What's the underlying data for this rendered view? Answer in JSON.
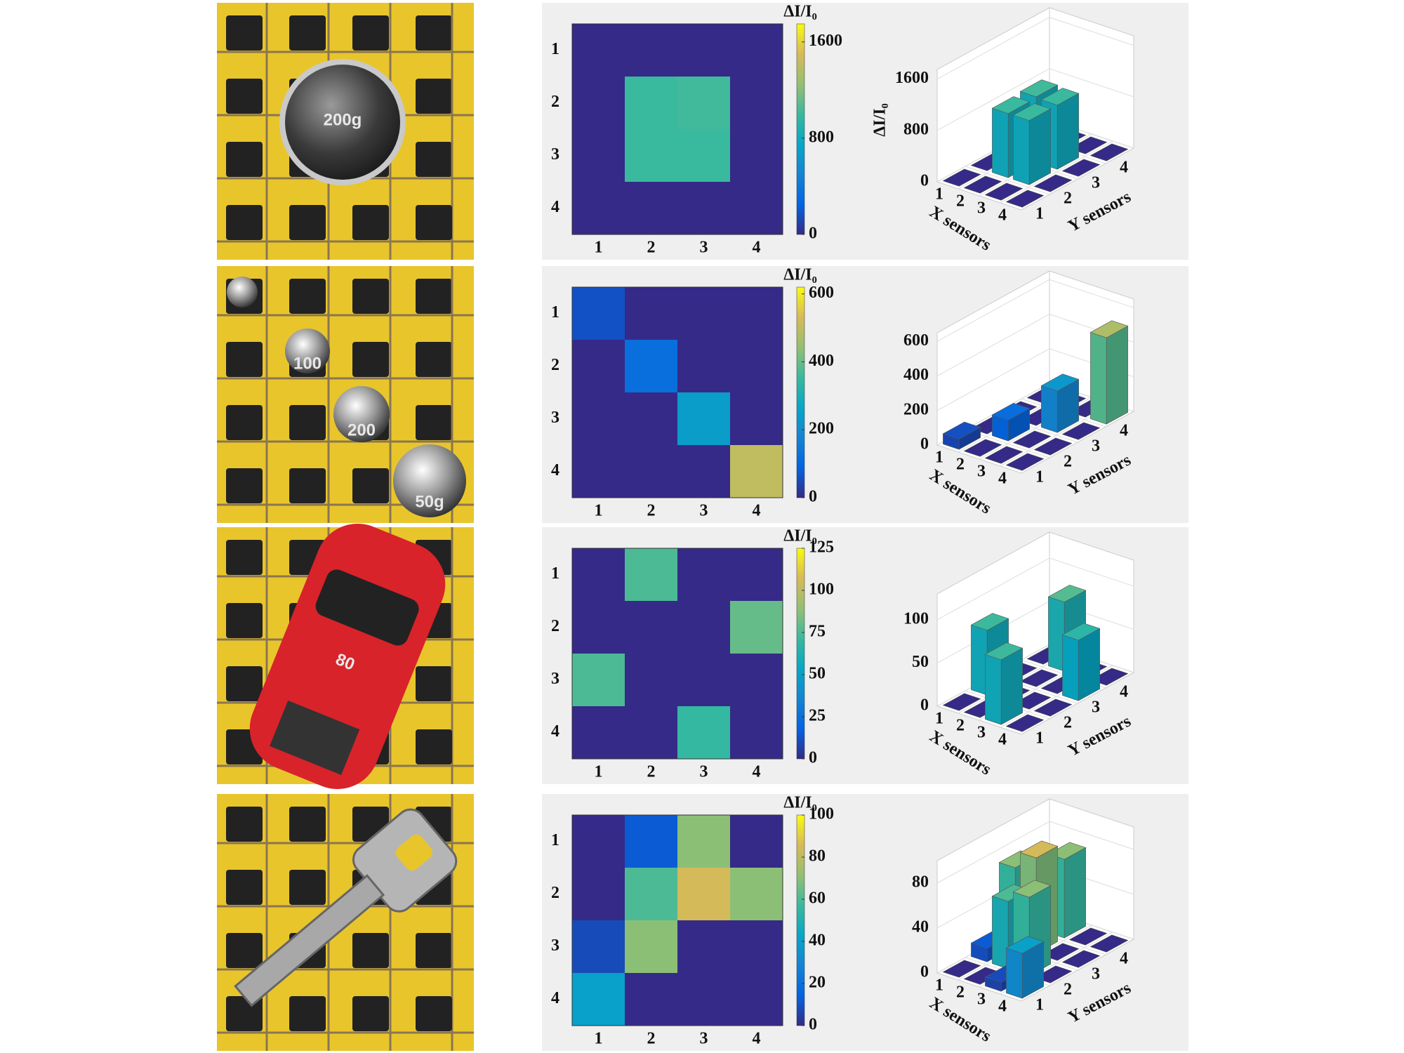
{
  "photos": {
    "weight": "200g",
    "weights": [
      "100",
      "200",
      "50g"
    ],
    "car": "80"
  },
  "chart_data": [
    {
      "type": "heatmap",
      "title": "ΔI/I₀",
      "x_categories": [
        "1",
        "2",
        "3",
        "4"
      ],
      "y_categories": [
        "1",
        "2",
        "3",
        "4"
      ],
      "values": [
        [
          0,
          0,
          0,
          0
        ],
        [
          0,
          1000,
          1020,
          0
        ],
        [
          0,
          1000,
          1000,
          0
        ],
        [
          0,
          0,
          0,
          0
        ]
      ],
      "clim": [
        0,
        1750
      ],
      "cticks": [
        0,
        800,
        1600
      ],
      "colormap": "parula"
    },
    {
      "type": "bar3d",
      "zlabel": "ΔI/I₀",
      "xlabel": "X sensors",
      "ylabel": "Y sensors",
      "x_categories": [
        "1",
        "2",
        "3",
        "4"
      ],
      "y_categories": [
        "1",
        "2",
        "3",
        "4"
      ],
      "values": [
        [
          0,
          0,
          0,
          0
        ],
        [
          0,
          1000,
          1020,
          0
        ],
        [
          0,
          1000,
          1000,
          0
        ],
        [
          0,
          0,
          0,
          0
        ]
      ],
      "zlim": [
        0,
        1750
      ],
      "zticks": [
        0,
        800,
        1600
      ],
      "colormap": "parula",
      "grid": true
    },
    {
      "type": "heatmap",
      "title": "ΔI/I₀",
      "x_categories": [
        "1",
        "2",
        "3",
        "4"
      ],
      "y_categories": [
        "1",
        "2",
        "3",
        "4"
      ],
      "values": [
        [
          60,
          0,
          0,
          0
        ],
        [
          0,
          120,
          0,
          0
        ],
        [
          0,
          0,
          240,
          0
        ],
        [
          0,
          0,
          0,
          500
        ]
      ],
      "clim": [
        0,
        620
      ],
      "cticks": [
        0,
        200,
        400,
        600
      ],
      "colormap": "parula"
    },
    {
      "type": "bar3d",
      "xlabel": "X sensors",
      "ylabel": "Y sensors",
      "x_categories": [
        "1",
        "2",
        "3",
        "4"
      ],
      "y_categories": [
        "1",
        "2",
        "3",
        "4"
      ],
      "values": [
        [
          60,
          0,
          0,
          0
        ],
        [
          0,
          120,
          0,
          0
        ],
        [
          0,
          0,
          240,
          0
        ],
        [
          0,
          0,
          0,
          500
        ]
      ],
      "zlim": [
        0,
        650
      ],
      "zticks": [
        0,
        200,
        400,
        600
      ],
      "colormap": "parula",
      "grid": true
    },
    {
      "type": "heatmap",
      "title": "ΔI/I₀",
      "x_categories": [
        "1",
        "2",
        "3",
        "4"
      ],
      "y_categories": [
        "1",
        "2",
        "3",
        "4"
      ],
      "values": [
        [
          0,
          75,
          0,
          0
        ],
        [
          0,
          0,
          0,
          80
        ],
        [
          75,
          0,
          0,
          0
        ],
        [
          0,
          0,
          70,
          0
        ]
      ],
      "clim": [
        0,
        125
      ],
      "cticks": [
        0,
        25,
        50,
        75,
        100,
        125
      ],
      "colormap": "parula"
    },
    {
      "type": "bar3d",
      "xlabel": "X sensors",
      "ylabel": "Y sensors",
      "x_categories": [
        "1",
        "2",
        "3",
        "4"
      ],
      "y_categories": [
        "1",
        "2",
        "3",
        "4"
      ],
      "values": [
        [
          0,
          75,
          0,
          0
        ],
        [
          0,
          0,
          0,
          80
        ],
        [
          75,
          0,
          0,
          0
        ],
        [
          0,
          0,
          70,
          0
        ]
      ],
      "zlim": [
        0,
        130
      ],
      "zticks": [
        0,
        50,
        100
      ],
      "colormap": "parula",
      "grid": true
    },
    {
      "type": "heatmap",
      "title": "ΔI/I₀",
      "x_categories": [
        "1",
        "2",
        "3",
        "4"
      ],
      "y_categories": [
        "1",
        "2",
        "3",
        "4"
      ],
      "values": [
        [
          0,
          12,
          70,
          0
        ],
        [
          0,
          60,
          85,
          70
        ],
        [
          8,
          70,
          0,
          0
        ],
        [
          40,
          0,
          0,
          0
        ]
      ],
      "clim": [
        0,
        100
      ],
      "cticks": [
        0,
        20,
        40,
        60,
        80,
        100
      ],
      "colormap": "parula"
    },
    {
      "type": "bar3d",
      "xlabel": "X sensors",
      "ylabel": "Y sensors",
      "x_categories": [
        "1",
        "2",
        "3",
        "4"
      ],
      "y_categories": [
        "1",
        "2",
        "3",
        "4"
      ],
      "values": [
        [
          0,
          12,
          70,
          0
        ],
        [
          0,
          60,
          85,
          70
        ],
        [
          8,
          70,
          0,
          0
        ],
        [
          40,
          0,
          0,
          0
        ]
      ],
      "zlim": [
        0,
        100
      ],
      "zticks": [
        0,
        40,
        80
      ],
      "colormap": "parula",
      "grid": true
    }
  ]
}
